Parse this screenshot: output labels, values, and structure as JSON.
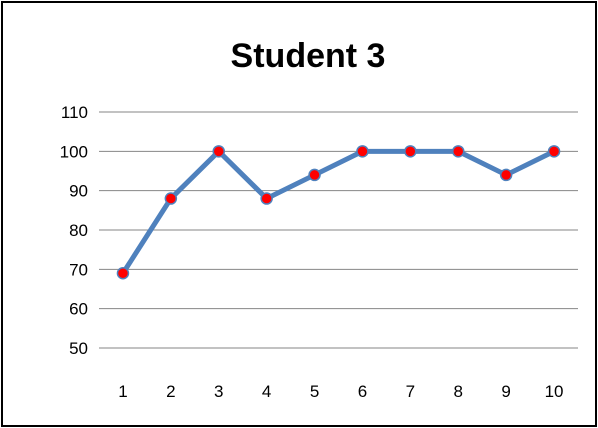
{
  "chart_data": {
    "type": "line",
    "title": "Student 3",
    "xlabel": "",
    "ylabel": "",
    "categories": [
      "1",
      "2",
      "3",
      "4",
      "5",
      "6",
      "7",
      "8",
      "9",
      "10"
    ],
    "series": [
      {
        "values": [
          69,
          88,
          100,
          88,
          94,
          100,
          100,
          100,
          94,
          100
        ]
      }
    ],
    "ylim": [
      50,
      110
    ],
    "yticks": [
      50,
      60,
      70,
      80,
      90,
      100,
      110
    ],
    "grid": true,
    "legend": "none",
    "colors": {
      "line": "#4f81bd",
      "marker_fill": "#ff0000",
      "marker_stroke": "#4f81bd",
      "grid": "#868686",
      "border": "#000000"
    }
  }
}
